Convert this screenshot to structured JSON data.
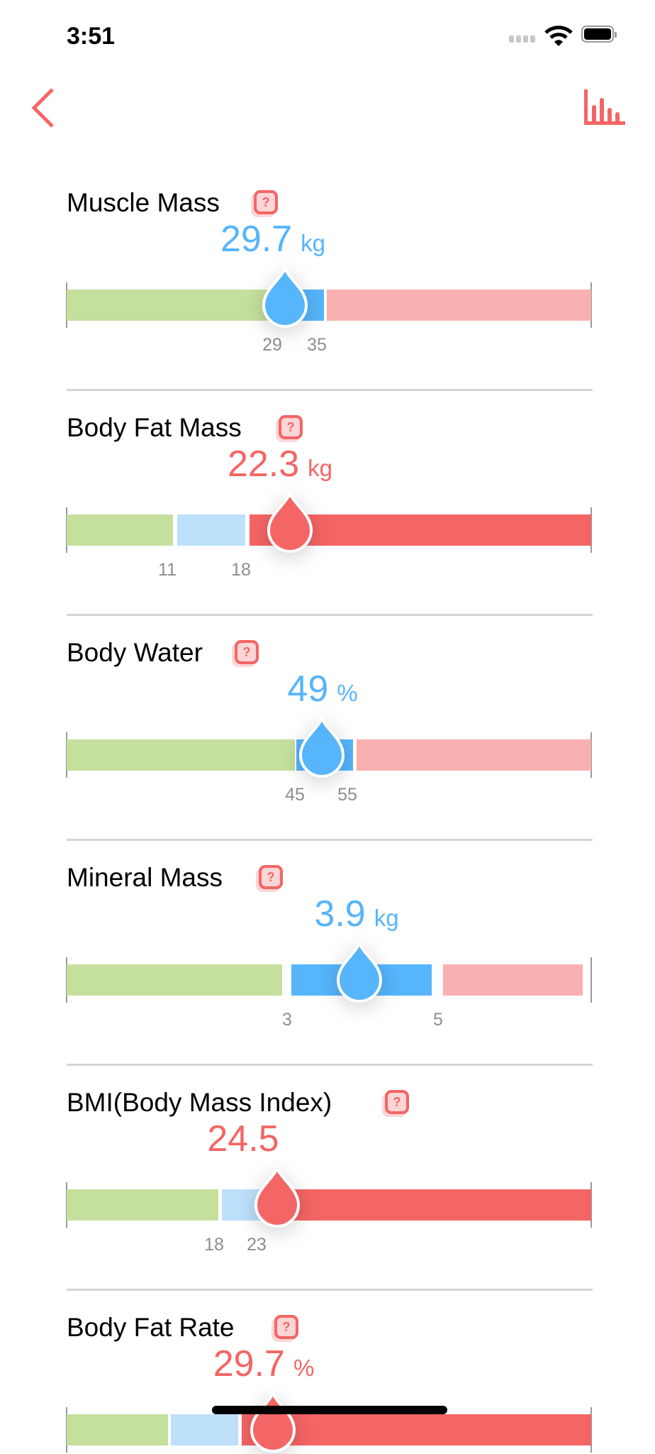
{
  "status_bar": {
    "time": "3:51"
  },
  "nav": {
    "back_icon": "chevron-left-icon",
    "chart_icon": "bar-chart-icon"
  },
  "colors": {
    "accent": "#f46565",
    "blue": "#56b5fb",
    "light_blue": "#bde0fb",
    "green": "#c5df9c",
    "pink": "#f9b0b0",
    "red": "#f46565",
    "label_gray": "#8e8e8e"
  },
  "metrics": [
    {
      "title": "Muscle Mass",
      "value": "29.7",
      "unit": "kg",
      "status": "normal",
      "thresholds": [
        "29",
        "35"
      ]
    },
    {
      "title": "Body Fat Mass",
      "value": "22.3",
      "unit": "kg",
      "status": "high",
      "thresholds": [
        "11",
        "18"
      ]
    },
    {
      "title": "Body Water",
      "value": "49",
      "unit": "%",
      "status": "normal",
      "thresholds": [
        "45",
        "55"
      ]
    },
    {
      "title": "Mineral Mass",
      "value": "3.9",
      "unit": "kg",
      "status": "normal",
      "thresholds": [
        "3",
        "5"
      ]
    },
    {
      "title": "BMI(Body Mass Index)",
      "value": "24.5",
      "unit": "",
      "status": "high",
      "thresholds": [
        "18",
        "23"
      ]
    },
    {
      "title": "Body Fat Rate",
      "value": "29.7",
      "unit": "%",
      "status": "high",
      "thresholds": []
    }
  ],
  "help_icon_text": "?"
}
